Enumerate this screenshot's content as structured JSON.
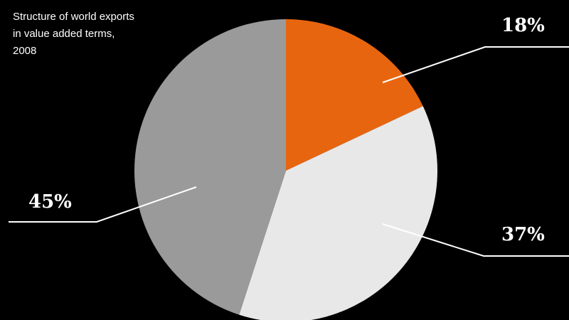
{
  "chart_data": {
    "type": "pie",
    "title": "Structure of world exports in value added terms, 2008",
    "start_angle_deg": 0,
    "direction": "clockwise",
    "slices": [
      {
        "value": 18,
        "label": "18%",
        "color": "#e8650f"
      },
      {
        "value": 37,
        "label": "37%",
        "color": "#e8e8e8"
      },
      {
        "value": 45,
        "label": "45%",
        "color": "#9a9a9a"
      }
    ],
    "legend": "none",
    "background": "#000000"
  }
}
